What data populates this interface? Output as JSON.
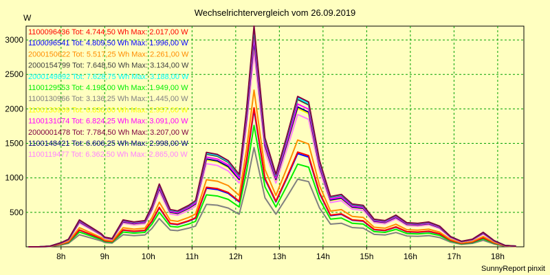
{
  "chart_data": {
    "type": "line",
    "title": "Wechselrichtervergleich vom 26.09.2019",
    "ylabel": "W",
    "xlabel": "",
    "credit": "SunnyReport pinxit",
    "ylim": [
      0,
      3200
    ],
    "xlim": [
      7.2,
      18.6
    ],
    "yticks": [
      500,
      1000,
      1500,
      2000,
      2500,
      3000
    ],
    "xticks": [
      {
        "value": 8,
        "label": "8h"
      },
      {
        "value": 9,
        "label": "9h"
      },
      {
        "value": 10,
        "label": "10h"
      },
      {
        "value": 11,
        "label": "11h"
      },
      {
        "value": 12,
        "label": "12h"
      },
      {
        "value": 13,
        "label": "13h"
      },
      {
        "value": 14,
        "label": "14h"
      },
      {
        "value": 15,
        "label": "15h"
      },
      {
        "value": 16,
        "label": "16h"
      },
      {
        "value": 17,
        "label": "17h"
      },
      {
        "value": 18,
        "label": "18h"
      }
    ],
    "grid": true,
    "legend_position": "top-left",
    "x": [
      7.25,
      7.5,
      7.75,
      8.0,
      8.17,
      8.42,
      8.67,
      8.92,
      9.0,
      9.17,
      9.42,
      9.67,
      9.92,
      10.08,
      10.25,
      10.5,
      10.67,
      10.92,
      11.08,
      11.33,
      11.58,
      11.83,
      12.08,
      12.25,
      12.42,
      12.67,
      12.92,
      13.17,
      13.42,
      13.67,
      13.92,
      14.17,
      14.42,
      14.67,
      14.92,
      15.17,
      15.42,
      15.67,
      15.92,
      16.17,
      16.42,
      16.67,
      16.92,
      17.17,
      17.42,
      17.67,
      17.92,
      18.17,
      18.42
    ],
    "series": [
      {
        "name": "1100096436",
        "legend": "1100096436 Tot: 4.744,50 Wh Max: 2.017,00 W",
        "color": "#ff0000",
        "scale": 0.63
      },
      {
        "name": "1100096541",
        "legend": "1100096541 Tot: 4.809,50 Wh Max: 1.996,00 W",
        "color": "#0000ff",
        "scale": 0.62
      },
      {
        "name": "2000150622",
        "legend": "2000150622 Tot: 5.517,25 Wh Max: 2.261,00 W",
        "color": "#ff8c00",
        "scale": 0.71
      },
      {
        "name": "2000154799",
        "legend": "2000154799 Tot: 7.648,50 Wh Max: 3.134,00 W",
        "color": "#404040",
        "scale": 0.98
      },
      {
        "name": "2000149892",
        "legend": "2000149892 Tot: 7.628,75 Wh Max: 3.188,00 W",
        "color": "#00ffff",
        "scale": 0.99
      },
      {
        "name": "1100129553",
        "legend": "1100129553 Tot: 4.198,00 Wh Max: 1.949,00 W",
        "color": "#00ee00",
        "scale": 0.55
      },
      {
        "name": "1100130966",
        "legend": "1100130966 Tot: 3.136,25 Wh Max: 1.445,00 W",
        "color": "#808080",
        "scale": 0.45
      },
      {
        "name": "1100130909",
        "legend": "1100130909 Tot: 6.830,00 Wh Max: 2.957,00 W",
        "color": "#ffff00",
        "scale": 0.92
      },
      {
        "name": "1100131074",
        "legend": "1100131074 Tot: 6.824,25 Wh Max: 3.091,00 W",
        "color": "#ff00ff",
        "scale": 0.95
      },
      {
        "name": "2000001478",
        "legend": "2000001478 Tot: 7.784,50 Wh Max: 3.207,00 W",
        "color": "#800040",
        "scale": 1.0
      },
      {
        "name": "1100148421",
        "legend": "1100148421 Tot: 6.606,25 Wh Max: 2.998,00 W",
        "color": "#000080",
        "scale": 0.93
      },
      {
        "name": "1100119477",
        "legend": "1100119477 Tot: 6.362,50 Wh Max: 2.865,00 W",
        "color": "#ff80ff",
        "scale": 0.88
      }
    ],
    "base_profile": [
      0,
      0,
      10,
      60,
      110,
      390,
      290,
      190,
      140,
      120,
      390,
      360,
      380,
      590,
      910,
      540,
      520,
      600,
      670,
      1370,
      1340,
      1250,
      1050,
      2000,
      3200,
      1580,
      1050,
      1600,
      2180,
      2100,
      1250,
      730,
      760,
      620,
      600,
      400,
      380,
      460,
      350,
      340,
      360,
      300,
      150,
      80,
      110,
      210,
      90,
      20,
      10
    ],
    "series_values_note": ""
  }
}
